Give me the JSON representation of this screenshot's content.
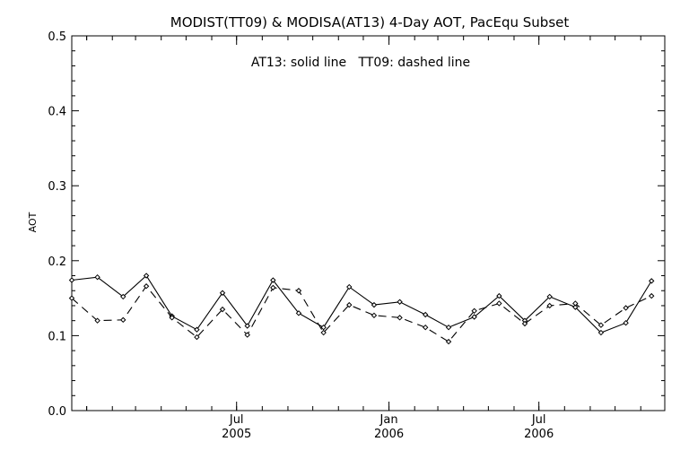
{
  "chart_data": {
    "type": "line",
    "title": "MODIST(TT09) & MODISA(AT13) 4-Day AOT, PacEqu Subset",
    "annotation": "AT13: solid line   TT09: dashed line",
    "xlabel": "",
    "ylabel": "AOT",
    "ylim": [
      0.0,
      0.5
    ],
    "y_ticks": [
      "0.0",
      "0.1",
      "0.2",
      "0.3",
      "0.4",
      "0.5"
    ],
    "x_ticks": [
      {
        "label": "Jul",
        "year": "2005",
        "date": "2005-07-01"
      },
      {
        "label": "Jan",
        "year": "2006",
        "date": "2006-01-01"
      },
      {
        "label": "Jul",
        "year": "2006",
        "date": "2006-07-01"
      }
    ],
    "xlim": [
      "2004-12-14",
      "2006-11-30"
    ],
    "grid": false,
    "series": [
      {
        "name": "AT13",
        "style": "solid",
        "color": "#000000",
        "points": [
          {
            "x": "2004-12-14",
            "y": 0.174
          },
          {
            "x": "2005-01-14",
            "y": 0.178
          },
          {
            "x": "2005-02-14",
            "y": 0.152
          },
          {
            "x": "2005-03-14",
            "y": 0.18
          },
          {
            "x": "2005-04-14",
            "y": 0.126
          },
          {
            "x": "2005-05-14",
            "y": 0.108
          },
          {
            "x": "2005-06-14",
            "y": 0.157
          },
          {
            "x": "2005-07-14",
            "y": 0.113
          },
          {
            "x": "2005-08-14",
            "y": 0.174
          },
          {
            "x": "2005-09-14",
            "y": 0.13
          },
          {
            "x": "2005-10-14",
            "y": 0.111
          },
          {
            "x": "2005-11-14",
            "y": 0.165
          },
          {
            "x": "2005-12-14",
            "y": 0.141
          },
          {
            "x": "2006-01-14",
            "y": 0.145
          },
          {
            "x": "2006-02-14",
            "y": 0.128
          },
          {
            "x": "2006-03-14",
            "y": 0.111
          },
          {
            "x": "2006-04-14",
            "y": 0.125
          },
          {
            "x": "2006-05-14",
            "y": 0.153
          },
          {
            "x": "2006-06-14",
            "y": 0.12
          },
          {
            "x": "2006-07-14",
            "y": 0.152
          },
          {
            "x": "2006-08-14",
            "y": 0.138
          },
          {
            "x": "2006-09-14",
            "y": 0.104
          },
          {
            "x": "2006-10-14",
            "y": 0.117
          },
          {
            "x": "2006-11-14",
            "y": 0.173
          }
        ]
      },
      {
        "name": "TT09",
        "style": "dashed",
        "color": "#000000",
        "points": [
          {
            "x": "2004-12-14",
            "y": 0.15
          },
          {
            "x": "2005-01-14",
            "y": 0.12
          },
          {
            "x": "2005-02-14",
            "y": 0.121
          },
          {
            "x": "2005-03-14",
            "y": 0.166
          },
          {
            "x": "2005-04-14",
            "y": 0.124
          },
          {
            "x": "2005-05-14",
            "y": 0.098
          },
          {
            "x": "2005-06-14",
            "y": 0.135
          },
          {
            "x": "2005-07-14",
            "y": 0.101
          },
          {
            "x": "2005-08-14",
            "y": 0.164
          },
          {
            "x": "2005-09-14",
            "y": 0.16
          },
          {
            "x": "2005-10-14",
            "y": 0.104
          },
          {
            "x": "2005-11-14",
            "y": 0.141
          },
          {
            "x": "2005-12-14",
            "y": 0.127
          },
          {
            "x": "2006-01-14",
            "y": 0.124
          },
          {
            "x": "2006-02-14",
            "y": 0.111
          },
          {
            "x": "2006-03-14",
            "y": 0.092
          },
          {
            "x": "2006-04-14",
            "y": 0.133
          },
          {
            "x": "2006-05-14",
            "y": 0.143
          },
          {
            "x": "2006-06-14",
            "y": 0.116
          },
          {
            "x": "2006-07-14",
            "y": 0.14
          },
          {
            "x": "2006-08-14",
            "y": 0.143
          },
          {
            "x": "2006-09-14",
            "y": 0.114
          },
          {
            "x": "2006-10-14",
            "y": 0.137
          },
          {
            "x": "2006-11-14",
            "y": 0.153
          }
        ]
      }
    ]
  }
}
